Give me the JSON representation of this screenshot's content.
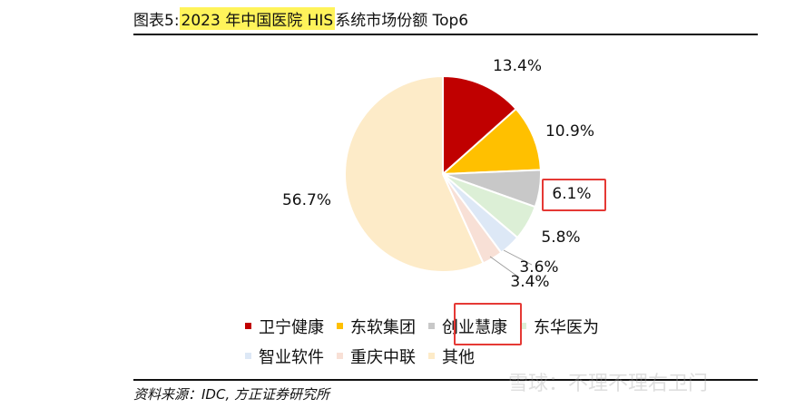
{
  "header": {
    "title_prefix": "图表5:",
    "title_highlight": "2023 年中国医院 HIS ",
    "title_rest": "系统市场份额 Top6"
  },
  "chart_data": {
    "type": "pie",
    "title": "2023 年中国医院 HIS 系统市场份额 Top6",
    "categories": [
      "卫宁健康",
      "东软集团",
      "创业慧康",
      "东华医为",
      "智业软件",
      "重庆中联",
      "其他"
    ],
    "values": [
      13.4,
      10.9,
      6.1,
      5.8,
      3.6,
      3.4,
      56.7
    ],
    "labels": [
      "13.4%",
      "10.9%",
      "6.1%",
      "5.8%",
      "3.6%",
      "3.4%",
      "56.7%"
    ],
    "colors": [
      "#c00000",
      "#ffc000",
      "#c8c8c8",
      "#dcefd6",
      "#dde8f6",
      "#f8e0d6",
      "#fdebc8"
    ],
    "legend_position": "bottom"
  },
  "legend": {
    "row1": [
      "卫宁健康",
      "东软集团",
      "创业慧康",
      "东华医为"
    ],
    "row2": [
      "智业软件",
      "重庆中联",
      "其他"
    ]
  },
  "footer": {
    "source": "资料来源：IDC, 方正证券研究所",
    "watermark": "雪球：不理不理右卫门"
  }
}
